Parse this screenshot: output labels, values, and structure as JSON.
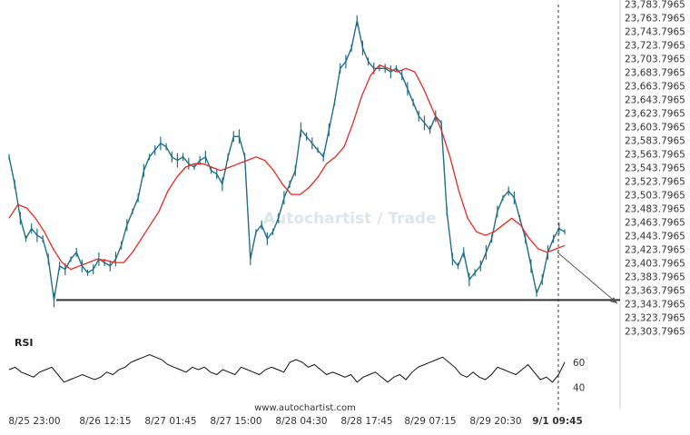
{
  "chart_data": [
    {
      "type": "line",
      "instrument_price_axis": {
        "ticks": [
          "23,783.7965",
          "23,763.7965",
          "23,743.7965",
          "23,723.7965",
          "23,703.7965",
          "23,683.7965",
          "23,663.7965",
          "23,643.7965",
          "23,623.7965",
          "23,603.7965",
          "23,583.7965",
          "23,563.7965",
          "23,543.7965",
          "23,523.7965",
          "23,503.7965",
          "23,483.7965",
          "23,463.7965",
          "23,443.7965",
          "23,423.7965",
          "23,403.7965",
          "23,383.7965",
          "23,363.7965",
          "23,343.7965",
          "23,323.7965",
          "23,303.7965"
        ],
        "ylim": [
          23303.7965,
          23783.7965
        ]
      },
      "x_ticks": [
        "8/25 23:00",
        "8/26 12:15",
        "8/27 01:45",
        "8/27 15:00",
        "8/28 04:30",
        "8/28 17:45",
        "8/29 07:15",
        "8/29 20:30",
        "9/1 09:45"
      ],
      "highlighted_x_tick": "9/1 09:45",
      "series": [
        {
          "role": "price",
          "color": "#1f6f8b",
          "values": [
            23560,
            23520,
            23470,
            23440,
            23455,
            23445,
            23440,
            23410,
            23350,
            23400,
            23395,
            23410,
            23420,
            23400,
            23390,
            23395,
            23410,
            23405,
            23400,
            23410,
            23430,
            23460,
            23480,
            23500,
            23540,
            23560,
            23570,
            23580,
            23575,
            23560,
            23555,
            23560,
            23550,
            23545,
            23555,
            23560,
            23540,
            23535,
            23520,
            23560,
            23590,
            23590,
            23560,
            23410,
            23450,
            23460,
            23440,
            23450,
            23470,
            23500,
            23520,
            23540,
            23600,
            23590,
            23580,
            23570,
            23560,
            23600,
            23640,
            23690,
            23700,
            23720,
            23760,
            23720,
            23700,
            23690,
            23690,
            23690,
            23685,
            23690,
            23680,
            23660,
            23640,
            23620,
            23610,
            23600,
            23620,
            23610,
            23480,
            23410,
            23400,
            23420,
            23380,
            23390,
            23400,
            23420,
            23440,
            23480,
            23500,
            23510,
            23500,
            23470,
            23440,
            23400,
            23360,
            23380,
            23420,
            23440,
            23455,
            23450
          ]
        },
        {
          "role": "moving-average",
          "color": "#e8281e",
          "values": [
            23470,
            23490,
            23485,
            23470,
            23450,
            23425,
            23405,
            23395,
            23400,
            23405,
            23410,
            23408,
            23405,
            23405,
            23420,
            23440,
            23460,
            23480,
            23510,
            23530,
            23545,
            23550,
            23550,
            23545,
            23540,
            23545,
            23550,
            23555,
            23560,
            23555,
            23540,
            23520,
            23505,
            23505,
            23515,
            23530,
            23550,
            23560,
            23575,
            23610,
            23650,
            23680,
            23695,
            23690,
            23685,
            23690,
            23685,
            23660,
            23630,
            23600,
            23560,
            23510,
            23470,
            23450,
            23445,
            23450,
            23460,
            23470,
            23460,
            23440,
            23425,
            23420,
            23425,
            23430
          ]
        },
        {
          "role": "rsi",
          "color": "#111111",
          "values": [
            54,
            56,
            52,
            50,
            48,
            52,
            54,
            56,
            50,
            44,
            46,
            48,
            50,
            48,
            46,
            48,
            52,
            50,
            54,
            56,
            60,
            62,
            64,
            66,
            64,
            62,
            58,
            56,
            54,
            52,
            56,
            54,
            56,
            52,
            50,
            54,
            52,
            50,
            56,
            54,
            52,
            50,
            54,
            56,
            54,
            52,
            60,
            62,
            60,
            56,
            58,
            54,
            50,
            52,
            50,
            48,
            50,
            44,
            48,
            50,
            52,
            48,
            44,
            48,
            50,
            46,
            52,
            56,
            58,
            60,
            62,
            64,
            60,
            56,
            50,
            48,
            52,
            48,
            46,
            50,
            56,
            54,
            52,
            50,
            54,
            58,
            52,
            46,
            48,
            44,
            50,
            60
          ]
        }
      ],
      "support_level": 23350,
      "projection": {
        "from_price": 23420,
        "to_price": 23345
      },
      "rsi_panel": {
        "label": "RSI",
        "ticks": [
          "60",
          "40"
        ]
      },
      "watermark": "Autochartist / Trade",
      "footer": "www.autochartist.com"
    }
  ]
}
